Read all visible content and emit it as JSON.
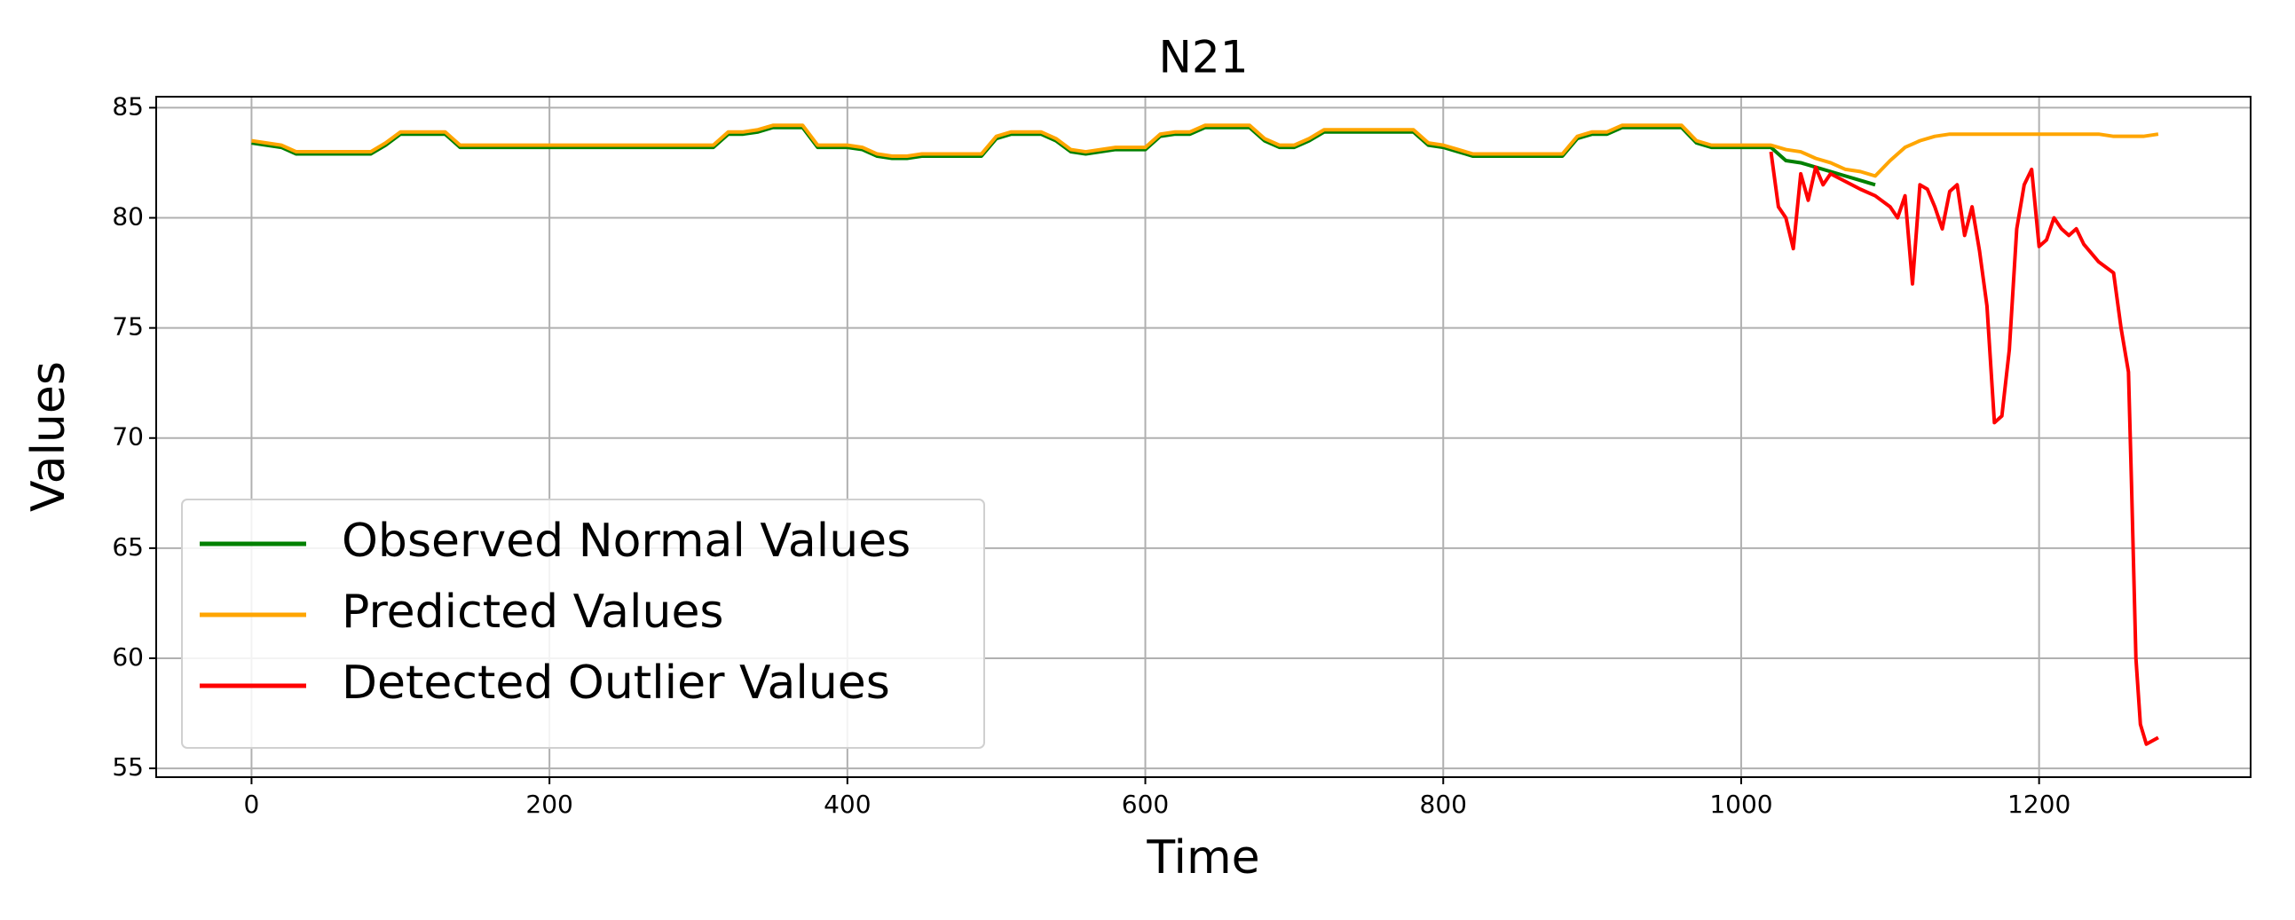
{
  "chart_data": {
    "type": "line",
    "title": "N21",
    "x_label": "Time",
    "y_label": "Values",
    "xlim": [
      -64,
      1342
    ],
    "ylim": [
      54.6,
      85.5
    ],
    "xticks": [
      0,
      200,
      400,
      600,
      800,
      1000,
      1200
    ],
    "yticks": [
      55,
      60,
      65,
      70,
      75,
      80,
      85
    ],
    "grid": true,
    "legend": "lower left",
    "series": [
      {
        "name": "Observed Normal Values",
        "color": "#008000",
        "x": [
          0,
          10,
          20,
          30,
          40,
          50,
          60,
          70,
          80,
          90,
          100,
          110,
          120,
          130,
          140,
          150,
          160,
          170,
          180,
          190,
          200,
          210,
          220,
          230,
          240,
          250,
          260,
          270,
          280,
          290,
          300,
          310,
          320,
          330,
          340,
          350,
          360,
          370,
          380,
          390,
          400,
          410,
          420,
          430,
          440,
          450,
          460,
          470,
          480,
          490,
          500,
          510,
          520,
          530,
          540,
          550,
          560,
          570,
          580,
          590,
          600,
          610,
          620,
          630,
          640,
          650,
          660,
          670,
          680,
          690,
          700,
          710,
          720,
          730,
          740,
          750,
          760,
          770,
          780,
          790,
          800,
          810,
          820,
          830,
          840,
          850,
          860,
          870,
          880,
          890,
          900,
          910,
          920,
          930,
          940,
          950,
          960,
          970,
          980,
          990,
          1000,
          1010,
          1020,
          1030,
          1040,
          1050,
          1060,
          1070,
          1080,
          1090
        ],
        "values": [
          83.4,
          83.3,
          83.2,
          82.9,
          82.9,
          82.9,
          82.9,
          82.9,
          82.9,
          83.3,
          83.8,
          83.8,
          83.8,
          83.8,
          83.2,
          83.2,
          83.2,
          83.2,
          83.2,
          83.2,
          83.2,
          83.2,
          83.2,
          83.2,
          83.2,
          83.2,
          83.2,
          83.2,
          83.2,
          83.2,
          83.2,
          83.2,
          83.8,
          83.8,
          83.9,
          84.1,
          84.1,
          84.1,
          83.2,
          83.2,
          83.2,
          83.1,
          82.8,
          82.7,
          82.7,
          82.8,
          82.8,
          82.8,
          82.8,
          82.8,
          83.6,
          83.8,
          83.8,
          83.8,
          83.5,
          83.0,
          82.9,
          83.0,
          83.1,
          83.1,
          83.1,
          83.7,
          83.8,
          83.8,
          84.1,
          84.1,
          84.1,
          84.1,
          83.5,
          83.2,
          83.2,
          83.5,
          83.9,
          83.9,
          83.9,
          83.9,
          83.9,
          83.9,
          83.9,
          83.3,
          83.2,
          83.0,
          82.8,
          82.8,
          82.8,
          82.8,
          82.8,
          82.8,
          82.8,
          83.6,
          83.8,
          83.8,
          84.1,
          84.1,
          84.1,
          84.1,
          84.1,
          83.4,
          83.2,
          83.2,
          83.2,
          83.2,
          83.2,
          82.6,
          82.5,
          82.3,
          82.1,
          81.9,
          81.7,
          81.5
        ]
      },
      {
        "name": "Predicted Values",
        "color": "#ffa500",
        "x": [
          0,
          10,
          20,
          30,
          40,
          50,
          60,
          70,
          80,
          90,
          100,
          110,
          120,
          130,
          140,
          150,
          160,
          170,
          180,
          190,
          200,
          210,
          220,
          230,
          240,
          250,
          260,
          270,
          280,
          290,
          300,
          310,
          320,
          330,
          340,
          350,
          360,
          370,
          380,
          390,
          400,
          410,
          420,
          430,
          440,
          450,
          460,
          470,
          480,
          490,
          500,
          510,
          520,
          530,
          540,
          550,
          560,
          570,
          580,
          590,
          600,
          610,
          620,
          630,
          640,
          650,
          660,
          670,
          680,
          690,
          700,
          710,
          720,
          730,
          740,
          750,
          760,
          770,
          780,
          790,
          800,
          810,
          820,
          830,
          840,
          850,
          860,
          870,
          880,
          890,
          900,
          910,
          920,
          930,
          940,
          950,
          960,
          970,
          980,
          990,
          1000,
          1010,
          1020,
          1030,
          1040,
          1050,
          1060,
          1070,
          1080,
          1090,
          1100,
          1110,
          1120,
          1130,
          1140,
          1150,
          1160,
          1170,
          1180,
          1190,
          1200,
          1210,
          1220,
          1230,
          1240,
          1250,
          1260,
          1270,
          1280
        ],
        "values": [
          83.5,
          83.4,
          83.3,
          83.0,
          83.0,
          83.0,
          83.0,
          83.0,
          83.0,
          83.4,
          83.9,
          83.9,
          83.9,
          83.9,
          83.3,
          83.3,
          83.3,
          83.3,
          83.3,
          83.3,
          83.3,
          83.3,
          83.3,
          83.3,
          83.3,
          83.3,
          83.3,
          83.3,
          83.3,
          83.3,
          83.3,
          83.3,
          83.9,
          83.9,
          84.0,
          84.2,
          84.2,
          84.2,
          83.3,
          83.3,
          83.3,
          83.2,
          82.9,
          82.8,
          82.8,
          82.9,
          82.9,
          82.9,
          82.9,
          82.9,
          83.7,
          83.9,
          83.9,
          83.9,
          83.6,
          83.1,
          83.0,
          83.1,
          83.2,
          83.2,
          83.2,
          83.8,
          83.9,
          83.9,
          84.2,
          84.2,
          84.2,
          84.2,
          83.6,
          83.3,
          83.3,
          83.6,
          84.0,
          84.0,
          84.0,
          84.0,
          84.0,
          84.0,
          84.0,
          83.4,
          83.3,
          83.1,
          82.9,
          82.9,
          82.9,
          82.9,
          82.9,
          82.9,
          82.9,
          83.7,
          83.9,
          83.9,
          84.2,
          84.2,
          84.2,
          84.2,
          84.2,
          83.5,
          83.3,
          83.3,
          83.3,
          83.3,
          83.3,
          83.1,
          83.0,
          82.7,
          82.5,
          82.2,
          82.1,
          81.9,
          82.6,
          83.2,
          83.5,
          83.7,
          83.8,
          83.8,
          83.8,
          83.8,
          83.8,
          83.8,
          83.8,
          83.8,
          83.8,
          83.8,
          83.8,
          83.7,
          83.7,
          83.7,
          83.8
        ]
      },
      {
        "name": "Detected Outlier Values",
        "color": "#ff0000",
        "x": [
          1020,
          1025,
          1030,
          1035,
          1040,
          1045,
          1050,
          1055,
          1060,
          1080,
          1090,
          1100,
          1105,
          1110,
          1115,
          1120,
          1125,
          1130,
          1135,
          1140,
          1145,
          1150,
          1155,
          1160,
          1165,
          1170,
          1175,
          1180,
          1185,
          1190,
          1195,
          1200,
          1205,
          1210,
          1215,
          1220,
          1225,
          1230,
          1240,
          1250,
          1255,
          1260,
          1262,
          1265,
          1268,
          1272,
          1280
        ],
        "values": [
          83,
          80.5,
          80,
          78.6,
          82,
          80.8,
          82.3,
          81.5,
          82,
          81.3,
          81,
          80.5,
          80,
          81,
          77,
          81.5,
          81.3,
          80.5,
          79.5,
          81.2,
          81.5,
          79.2,
          80.5,
          78.5,
          76,
          70.7,
          71,
          74,
          79.5,
          81.5,
          82.2,
          78.7,
          79,
          80,
          79.5,
          79.2,
          79.5,
          78.8,
          78,
          77.5,
          75,
          73,
          68,
          60,
          57,
          56.1,
          56.4
        ]
      }
    ]
  }
}
